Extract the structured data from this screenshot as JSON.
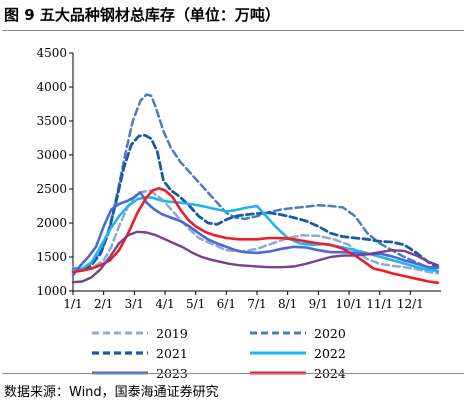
{
  "header": {
    "title": "图 9 五大品种钢材总库存（单位：万吨）"
  },
  "footer": {
    "source": "数据来源：Wind，国泰海通证券研究"
  },
  "chart_data": {
    "type": "line",
    "title": "",
    "xlabel": "",
    "ylabel": "",
    "ylim": [
      1000,
      4500
    ],
    "yticks": [
      1000,
      1500,
      2000,
      2500,
      3000,
      3500,
      4000,
      4500
    ],
    "xlim": [
      0,
      12
    ],
    "xticks": [
      "1/1",
      "2/1",
      "3/1",
      "4/1",
      "5/1",
      "6/1",
      "7/1",
      "8/1",
      "9/1",
      "10/1",
      "11/1",
      "12/1"
    ],
    "grid": false,
    "legend_position": "bottom",
    "series": [
      {
        "name": "2019",
        "color": "#8fa9d6",
        "dash": "dash",
        "width": 2.5,
        "x": [
          0,
          0.35,
          0.7,
          1.0,
          1.25,
          1.5,
          1.8,
          2.1,
          2.5,
          2.9,
          3.3,
          3.7,
          4.1,
          4.6,
          5.0,
          5.5,
          6.0,
          6.5,
          7.0,
          7.5,
          8.0,
          8.5,
          9.0,
          9.3,
          9.6,
          10.0,
          10.4,
          10.8,
          11.2,
          11.6,
          11.9
        ],
        "values": [
          1340,
          1330,
          1360,
          1450,
          1650,
          1950,
          2250,
          2440,
          2480,
          2350,
          2150,
          1950,
          1780,
          1680,
          1600,
          1580,
          1620,
          1700,
          1780,
          1820,
          1810,
          1760,
          1680,
          1560,
          1470,
          1400,
          1370,
          1350,
          1320,
          1280,
          1260
        ]
      },
      {
        "name": "2020",
        "color": "#4a7cc2",
        "dash": "dash",
        "width": 2.5,
        "x": [
          0,
          0.3,
          0.6,
          0.95,
          1.2,
          1.45,
          1.7,
          1.95,
          2.2,
          2.4,
          2.55,
          2.7,
          2.95,
          3.2,
          3.5,
          3.8,
          4.1,
          4.4,
          4.7,
          5.0,
          5.3,
          5.6,
          6.0,
          6.4,
          6.8,
          7.2,
          7.6,
          8.0,
          8.4,
          8.8,
          9.2,
          9.6,
          10.0,
          10.4,
          10.8,
          11.2,
          11.6,
          11.9
        ],
        "values": [
          1320,
          1330,
          1410,
          1600,
          1950,
          2450,
          3000,
          3500,
          3800,
          3890,
          3870,
          3700,
          3350,
          3100,
          2900,
          2750,
          2600,
          2450,
          2300,
          2150,
          2080,
          2060,
          2100,
          2160,
          2200,
          2220,
          2240,
          2260,
          2250,
          2230,
          2100,
          1850,
          1700,
          1600,
          1500,
          1420,
          1340,
          1320
        ]
      },
      {
        "name": "2021",
        "color": "#1a5aa4",
        "dash": "dash",
        "width": 2.8,
        "x": [
          0,
          0.3,
          0.6,
          0.9,
          1.15,
          1.4,
          1.65,
          1.9,
          2.15,
          2.35,
          2.55,
          2.75,
          2.95,
          3.2,
          3.5,
          3.8,
          4.1,
          4.4,
          4.7,
          5.0,
          5.3,
          5.6,
          6.0,
          6.4,
          6.8,
          7.2,
          7.6,
          8.0,
          8.4,
          8.8,
          9.2,
          9.6,
          10.0,
          10.4,
          10.8,
          11.2,
          11.6,
          11.9
        ],
        "values": [
          1290,
          1300,
          1380,
          1550,
          1850,
          2300,
          2800,
          3150,
          3280,
          3290,
          3240,
          3050,
          2620,
          2480,
          2380,
          2250,
          2100,
          2000,
          1980,
          2050,
          2100,
          2120,
          2140,
          2150,
          2120,
          2080,
          2030,
          1950,
          1850,
          1800,
          1780,
          1760,
          1730,
          1720,
          1680,
          1560,
          1420,
          1350
        ]
      },
      {
        "name": "2022",
        "color": "#1fb4f0",
        "dash": "solid",
        "width": 2.6,
        "x": [
          0,
          0.3,
          0.6,
          0.9,
          1.2,
          1.5,
          1.8,
          2.1,
          2.4,
          2.6,
          2.8,
          3.0,
          3.2,
          3.5,
          3.8,
          4.1,
          4.4,
          4.7,
          5.0,
          5.3,
          5.6,
          6.0,
          6.3,
          6.6,
          7.0,
          7.4,
          7.8,
          8.2,
          8.6,
          9.0,
          9.4,
          9.8,
          10.2,
          10.6,
          11.0,
          11.4,
          11.8,
          11.9
        ],
        "values": [
          1300,
          1330,
          1420,
          1650,
          1900,
          2100,
          2250,
          2350,
          2380,
          2370,
          2340,
          2320,
          2310,
          2300,
          2280,
          2260,
          2230,
          2200,
          2170,
          2190,
          2220,
          2250,
          2100,
          1950,
          1780,
          1700,
          1680,
          1690,
          1660,
          1620,
          1580,
          1530,
          1480,
          1430,
          1380,
          1330,
          1300,
          1290
        ]
      },
      {
        "name": "2023",
        "color": "#4a68dc",
        "dash": "solid",
        "width": 2.6,
        "x": [
          0,
          0.25,
          0.5,
          0.75,
          1.0,
          1.25,
          1.5,
          1.75,
          2.0,
          2.2,
          2.4,
          2.65,
          2.9,
          3.2,
          3.5,
          3.8,
          4.1,
          4.4,
          4.7,
          5.0,
          5.3,
          5.6,
          6.0,
          6.4,
          6.8,
          7.2,
          7.6,
          8.0,
          8.4,
          8.8,
          9.2,
          9.6,
          10.0,
          10.4,
          10.8,
          11.2,
          11.6,
          11.9
        ],
        "values": [
          1230,
          1380,
          1500,
          1650,
          1950,
          2200,
          2280,
          2320,
          2380,
          2450,
          2300,
          2200,
          2130,
          2080,
          2030,
          1950,
          1850,
          1760,
          1700,
          1650,
          1600,
          1570,
          1560,
          1580,
          1620,
          1650,
          1640,
          1600,
          1570,
          1570,
          1560,
          1540,
          1550,
          1510,
          1450,
          1400,
          1350,
          1340
        ]
      },
      {
        "name": "2024",
        "color": "#ee1c25",
        "dash": "solid",
        "width": 2.6,
        "x": [
          0,
          0.3,
          0.6,
          0.9,
          1.2,
          1.5,
          1.8,
          2.1,
          2.4,
          2.6,
          2.8,
          3.0,
          3.25,
          3.5,
          3.75,
          4.0,
          4.3,
          4.6,
          5.0,
          5.4,
          5.8,
          6.0,
          6.4,
          6.8,
          7.2,
          7.6,
          8.0,
          8.4,
          8.8,
          9.2,
          9.5,
          9.8,
          10.1,
          10.4,
          10.8,
          11.2,
          11.6,
          11.9
        ],
        "values": [
          1280,
          1300,
          1330,
          1380,
          1450,
          1600,
          1850,
          2150,
          2380,
          2480,
          2510,
          2480,
          2380,
          2200,
          2050,
          1950,
          1870,
          1820,
          1780,
          1760,
          1760,
          1760,
          1780,
          1780,
          1760,
          1730,
          1700,
          1680,
          1620,
          1520,
          1430,
          1330,
          1300,
          1260,
          1220,
          1180,
          1140,
          1120
        ]
      },
      {
        "name": "",
        "color": "#7b3f8e",
        "dash": "solid",
        "width": 2.4,
        "x": [
          0,
          0.3,
          0.6,
          0.9,
          1.2,
          1.5,
          1.8,
          2.1,
          2.4,
          2.7,
          3.0,
          3.3,
          3.6,
          3.9,
          4.2,
          4.5,
          4.8,
          5.1,
          5.4,
          5.7,
          6.0,
          6.4,
          6.8,
          7.2,
          7.6,
          8.0,
          8.4,
          8.8,
          9.2,
          9.6,
          10.0,
          10.4,
          10.8,
          11.2,
          11.6,
          11.9
        ],
        "values": [
          1130,
          1140,
          1200,
          1320,
          1500,
          1700,
          1820,
          1870,
          1860,
          1820,
          1760,
          1700,
          1640,
          1560,
          1500,
          1460,
          1430,
          1400,
          1380,
          1370,
          1360,
          1350,
          1350,
          1360,
          1400,
          1450,
          1500,
          1520,
          1520,
          1540,
          1570,
          1600,
          1590,
          1520,
          1430,
          1380
        ]
      }
    ]
  }
}
